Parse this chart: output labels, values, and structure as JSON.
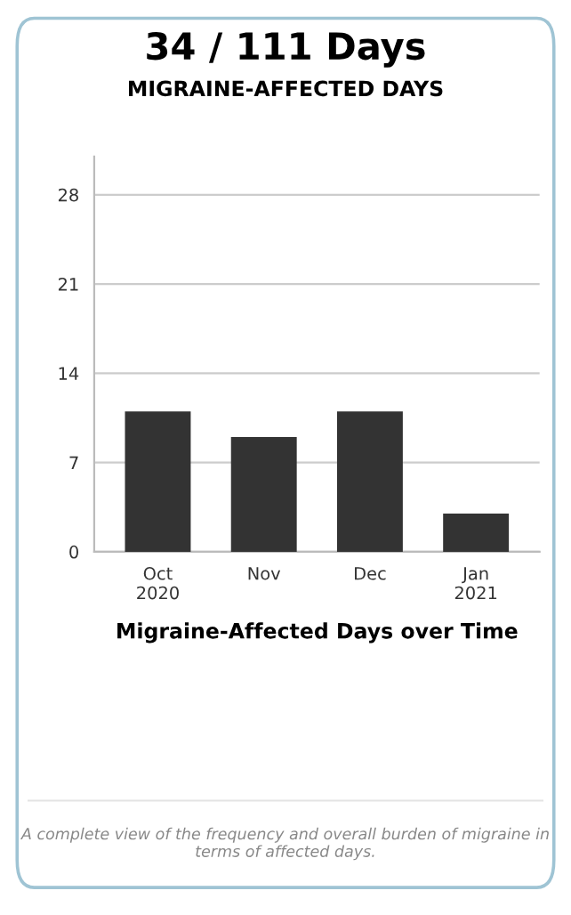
{
  "chart_data": {
    "type": "bar",
    "title": "34 / 111 Days",
    "subtitle": "MIGRAINE-AFFECTED DAYS",
    "xlabel": "Migraine-Affected Days over Time",
    "categories": [
      "Oct\n2020",
      "Nov",
      "Dec",
      "Jan\n2021"
    ],
    "values": [
      11,
      9,
      11,
      3
    ],
    "color": "#333333",
    "ylim": [
      0,
      31
    ],
    "yticks": [
      0,
      7,
      14,
      21,
      28
    ],
    "grid": "y",
    "annotations": [
      "A complete view of the frequency and overall burden of migraine in terms of affected days."
    ]
  }
}
